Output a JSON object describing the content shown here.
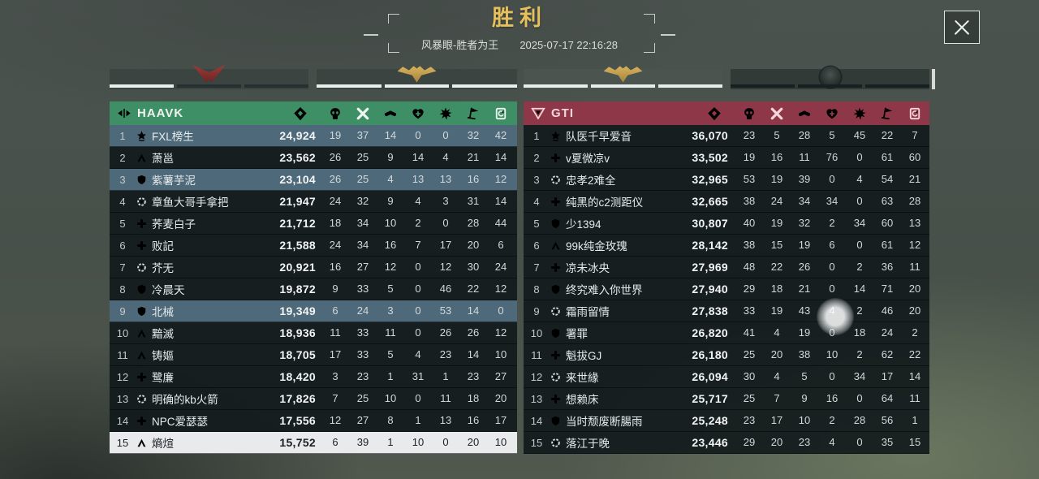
{
  "header": {
    "title": "胜利",
    "mode": "风暴眼-胜者为王",
    "datetime": "2025-07-17 22:16:28"
  },
  "colors": {
    "title": "#e5c05c",
    "teammate_row": "#4e6a7a",
    "self_row": "#e9eaec"
  },
  "banners": [
    {
      "medal": "red",
      "segments": [
        "lit",
        "dim",
        "dim"
      ]
    },
    {
      "medal": "gold",
      "segments": [
        "lit",
        "lit",
        "lit"
      ]
    },
    {
      "medal": "gold",
      "segments": [
        "lit",
        "lit",
        "lit"
      ]
    },
    {
      "medal": "dark",
      "segments": [
        "dim",
        "dim",
        "dim"
      ]
    }
  ],
  "stat_columns": [
    "score",
    "kills",
    "knockdowns",
    "assists",
    "revives",
    "bursts",
    "flags",
    "records"
  ],
  "teams": [
    {
      "name": "HAAVK",
      "logo": "haavk-logo",
      "accent": "#3f8f66",
      "accent_text": "#eef4ef",
      "players": [
        {
          "rank": 1,
          "class": "crown",
          "name": "FXL榜生",
          "score": "24,924",
          "stats": [
            19,
            37,
            14,
            0,
            0,
            32,
            42
          ],
          "highlight": "teammate"
        },
        {
          "rank": 2,
          "class": "chevron",
          "name": "萧邕",
          "score": "23,562",
          "stats": [
            26,
            25,
            9,
            14,
            4,
            21,
            14
          ],
          "highlight": null
        },
        {
          "rank": 3,
          "class": "shield",
          "name": "紫薯芋泥",
          "score": "23,104",
          "stats": [
            26,
            25,
            4,
            13,
            13,
            16,
            12
          ],
          "highlight": "teammate"
        },
        {
          "rank": 4,
          "class": "gear",
          "name": "章鱼大哥手拿把",
          "score": "21,947",
          "stats": [
            24,
            32,
            9,
            4,
            3,
            31,
            14
          ],
          "highlight": null
        },
        {
          "rank": 5,
          "class": "plus",
          "name": "荞麦白子",
          "score": "21,712",
          "stats": [
            18,
            34,
            10,
            2,
            0,
            28,
            44
          ],
          "highlight": null
        },
        {
          "rank": 6,
          "class": "plus",
          "name": "败記",
          "score": "21,588",
          "stats": [
            24,
            34,
            16,
            7,
            17,
            20,
            6
          ],
          "highlight": null
        },
        {
          "rank": 7,
          "class": "gear",
          "name": "芥无",
          "score": "20,921",
          "stats": [
            16,
            27,
            12,
            0,
            12,
            30,
            24
          ],
          "highlight": null
        },
        {
          "rank": 8,
          "class": "shield",
          "name": "冷晨天",
          "score": "19,872",
          "stats": [
            9,
            33,
            5,
            0,
            46,
            22,
            12
          ],
          "highlight": null
        },
        {
          "rank": 9,
          "class": "shield",
          "name": "北械",
          "score": "19,349",
          "stats": [
            6,
            24,
            3,
            0,
            53,
            14,
            0
          ],
          "highlight": "teammate"
        },
        {
          "rank": 10,
          "class": "chevron",
          "name": "黯滅",
          "score": "18,936",
          "stats": [
            11,
            33,
            11,
            0,
            26,
            26,
            12
          ],
          "highlight": null
        },
        {
          "rank": 11,
          "class": "chevron",
          "name": "铸嫗",
          "score": "18,705",
          "stats": [
            17,
            33,
            5,
            4,
            23,
            14,
            10
          ],
          "highlight": null
        },
        {
          "rank": 12,
          "class": "plus",
          "name": "鹭廉",
          "score": "18,420",
          "stats": [
            3,
            23,
            1,
            31,
            1,
            23,
            27
          ],
          "highlight": null
        },
        {
          "rank": 13,
          "class": "gear",
          "name": "明确的kb火箭",
          "score": "17,826",
          "stats": [
            7,
            25,
            10,
            0,
            11,
            18,
            20
          ],
          "highlight": null
        },
        {
          "rank": 14,
          "class": "plus",
          "name": "NPC爱瑟瑟",
          "score": "17,556",
          "stats": [
            12,
            27,
            8,
            1,
            13,
            16,
            17
          ],
          "highlight": null
        },
        {
          "rank": 15,
          "class": "chevron",
          "name": "熵煊",
          "score": "15,752",
          "stats": [
            6,
            39,
            1,
            10,
            0,
            20,
            10
          ],
          "highlight": "self"
        }
      ]
    },
    {
      "name": "GTI",
      "logo": "gti-logo",
      "accent": "#8e3748",
      "accent_text": "#f5d6db",
      "players": [
        {
          "rank": 1,
          "class": "crown",
          "name": "队医千早爱音",
          "score": "36,070",
          "stats": [
            23,
            5,
            28,
            5,
            45,
            22,
            7
          ],
          "highlight": null
        },
        {
          "rank": 2,
          "class": "plus",
          "name": "v夏微凉v",
          "score": "33,502",
          "stats": [
            19,
            16,
            11,
            76,
            0,
            61,
            60
          ],
          "highlight": null
        },
        {
          "rank": 3,
          "class": "gear",
          "name": "忠孝2难全",
          "score": "32,965",
          "stats": [
            53,
            19,
            39,
            0,
            4,
            54,
            21
          ],
          "highlight": null
        },
        {
          "rank": 4,
          "class": "plus",
          "name": "纯黑的c2测距仪",
          "score": "32,665",
          "stats": [
            38,
            24,
            34,
            34,
            0,
            63,
            28
          ],
          "highlight": null
        },
        {
          "rank": 5,
          "class": "shield",
          "name": "少1394",
          "score": "30,807",
          "stats": [
            40,
            19,
            32,
            2,
            34,
            60,
            13
          ],
          "highlight": null
        },
        {
          "rank": 6,
          "class": "chevron",
          "name": "99k纯金玫瑰",
          "score": "28,142",
          "stats": [
            38,
            15,
            19,
            6,
            0,
            61,
            12
          ],
          "highlight": null
        },
        {
          "rank": 7,
          "class": "plus",
          "name": "凉未冰央",
          "score": "27,969",
          "stats": [
            48,
            22,
            26,
            0,
            2,
            36,
            11
          ],
          "highlight": null
        },
        {
          "rank": 8,
          "class": "shield",
          "name": "终究难入你世界",
          "score": "27,940",
          "stats": [
            29,
            18,
            21,
            0,
            14,
            71,
            20
          ],
          "highlight": null
        },
        {
          "rank": 9,
          "class": "gear",
          "name": "霜雨留情",
          "score": "27,838",
          "stats": [
            33,
            19,
            43,
            4,
            2,
            46,
            20
          ],
          "highlight": null
        },
        {
          "rank": 10,
          "class": "shield",
          "name": "署罪",
          "score": "26,820",
          "stats": [
            41,
            4,
            19,
            0,
            18,
            24,
            2
          ],
          "highlight": null
        },
        {
          "rank": 11,
          "class": "plus",
          "name": "魁拔GJ",
          "score": "26,180",
          "stats": [
            25,
            20,
            38,
            10,
            2,
            62,
            22
          ],
          "highlight": null
        },
        {
          "rank": 12,
          "class": "gear",
          "name": "来世緣",
          "score": "26,094",
          "stats": [
            30,
            4,
            5,
            0,
            34,
            17,
            14
          ],
          "highlight": null
        },
        {
          "rank": 13,
          "class": "plus",
          "name": "想赖床",
          "score": "25,717",
          "stats": [
            25,
            7,
            9,
            16,
            0,
            64,
            11
          ],
          "highlight": null
        },
        {
          "rank": 14,
          "class": "shield",
          "name": "当时颓废断腸雨",
          "score": "25,248",
          "stats": [
            23,
            17,
            10,
            2,
            28,
            56,
            1
          ],
          "highlight": null
        },
        {
          "rank": 15,
          "class": "gear",
          "name": "落江于晚",
          "score": "23,446",
          "stats": [
            29,
            20,
            23,
            4,
            0,
            35,
            15
          ],
          "highlight": null
        }
      ]
    }
  ]
}
